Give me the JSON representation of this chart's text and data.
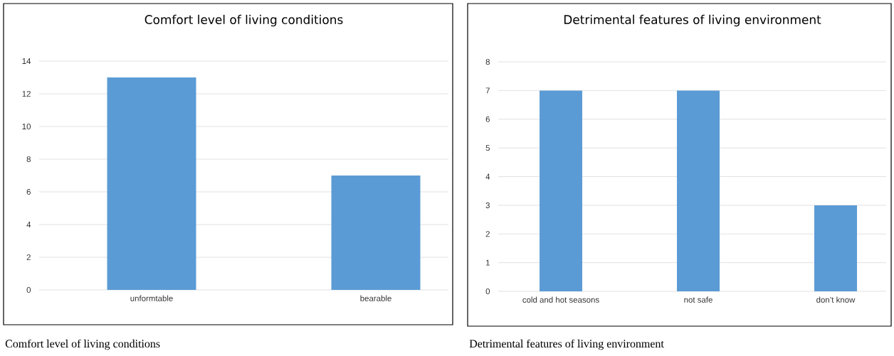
{
  "chart_data": [
    {
      "type": "bar",
      "title": "Comfort level of living conditions",
      "categories": [
        "unformtable",
        "bearable"
      ],
      "values": [
        13,
        7
      ],
      "color": "#5b9bd5",
      "ylim": [
        0,
        14
      ],
      "yticks": [
        0,
        2,
        4,
        6,
        8,
        10,
        12,
        14
      ],
      "grid": "y",
      "annotations": [
        "Comfort level of living conditions"
      ]
    },
    {
      "type": "bar",
      "title": "Detrimental features of living environment",
      "categories": [
        "cold and hot seasons",
        "not safe",
        "don’t know"
      ],
      "values": [
        7,
        7,
        3
      ],
      "color": "#5b9bd5",
      "ylim": [
        0,
        8
      ],
      "yticks": [
        0,
        1,
        2,
        3,
        4,
        5,
        6,
        7,
        8
      ],
      "grid": "y",
      "annotations": [
        "Detrimental features of living environment"
      ]
    }
  ]
}
